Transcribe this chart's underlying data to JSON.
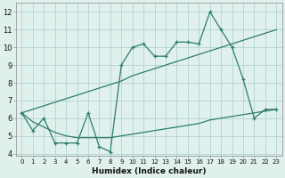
{
  "xlabel": "Humidex (Indice chaleur)",
  "x": [
    0,
    1,
    2,
    3,
    4,
    5,
    6,
    7,
    8,
    9,
    10,
    11,
    12,
    13,
    14,
    15,
    16,
    17,
    18,
    19,
    20,
    21,
    22,
    23
  ],
  "line_data": [
    6.3,
    5.3,
    6.0,
    4.6,
    4.6,
    4.6,
    6.3,
    4.4,
    4.1,
    9.0,
    10.0,
    10.2,
    9.5,
    9.5,
    10.3,
    10.3,
    10.2,
    12.0,
    11.0,
    10.0,
    8.2,
    6.0,
    6.5,
    6.5
  ],
  "line_upper": [
    6.3,
    6.5,
    6.7,
    6.9,
    7.1,
    7.3,
    7.5,
    7.7,
    7.9,
    8.1,
    8.4,
    8.6,
    8.8,
    9.0,
    9.2,
    9.4,
    9.6,
    9.8,
    10.0,
    10.2,
    10.4,
    10.6,
    10.8,
    11.0
  ],
  "line_lower": [
    6.3,
    5.8,
    5.5,
    5.2,
    5.0,
    4.9,
    4.9,
    4.9,
    4.9,
    5.0,
    5.1,
    5.2,
    5.3,
    5.4,
    5.5,
    5.6,
    5.7,
    5.9,
    6.0,
    6.1,
    6.2,
    6.3,
    6.4,
    6.5
  ],
  "color": "#2d7d6d",
  "bg_color": "#dff0ed",
  "grid_color": "#b8d8d4",
  "ylim": [
    3.9,
    12.5
  ],
  "yticks": [
    4,
    5,
    6,
    7,
    8,
    9,
    10,
    11,
    12
  ],
  "xlim": [
    -0.5,
    23.5
  ]
}
